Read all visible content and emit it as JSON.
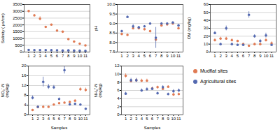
{
  "chart_data": [
    {
      "type": "scatter",
      "ylabel": "Salinity ( μs/cm)",
      "x": [
        1,
        2,
        3,
        4,
        5,
        6,
        7,
        8,
        9,
        10,
        11
      ],
      "xlim": [
        0.2,
        11.8
      ],
      "xticks": [
        1,
        2,
        3,
        4,
        5,
        6,
        7,
        8,
        9,
        10,
        11
      ],
      "ylim": [
        0,
        3500
      ],
      "yticks": [
        0,
        500,
        1000,
        1500,
        2000,
        2500,
        3000,
        3500
      ],
      "grid": true,
      "series": [
        {
          "name": "Mudflat sites",
          "color": "#E07B54",
          "values": [
            3020,
            2700,
            2460,
            1850,
            2020,
            1580,
            1500,
            950,
            770,
            620,
            490
          ],
          "errors": [
            60,
            80,
            150,
            50,
            40,
            30,
            30,
            30,
            20,
            20,
            20
          ]
        },
        {
          "name": "Agricultural sites",
          "color": "#5469B0",
          "values": [
            155,
            145,
            145,
            140,
            135,
            130,
            115,
            120,
            115,
            105,
            90
          ],
          "errors": [
            5,
            5,
            5,
            5,
            5,
            5,
            5,
            5,
            5,
            5,
            5
          ]
        }
      ]
    },
    {
      "type": "scatter",
      "ylabel": "pH",
      "x": [
        1,
        2,
        3,
        4,
        5,
        6,
        7,
        8,
        9,
        10,
        11
      ],
      "xlim": [
        0.2,
        11.8
      ],
      "xticks": [
        1,
        2,
        3,
        4,
        5,
        6,
        7,
        8,
        9,
        10,
        11
      ],
      "ylim": [
        7.5,
        10
      ],
      "yticks": [
        7.5,
        {
          "value": 8,
          "label": "8.0"
        },
        8.5,
        {
          "value": 9,
          "label": "9.0"
        },
        9.5,
        {
          "value": 10,
          "label": "10.0"
        }
      ],
      "grid": true,
      "series": [
        {
          "name": "Mudflat sites",
          "color": "#E07B54",
          "values": [
            8.45,
            8.4,
            8.75,
            8.75,
            8.7,
            8.6,
            8.15,
            8.9,
            8.95,
            9.0,
            8.75
          ],
          "errors": [
            0.05,
            0.05,
            0.05,
            0.05,
            0.05,
            0.05,
            0.1,
            0.05,
            0.05,
            0.05,
            0.05
          ]
        },
        {
          "name": "Agricultural sites",
          "color": "#5469B0",
          "values": [
            8.6,
            9.35,
            8.85,
            8.8,
            8.85,
            9.0,
            8.25,
            9.0,
            9.0,
            9.05,
            8.9
          ],
          "errors": [
            0.05,
            0.05,
            0.1,
            0.05,
            0.05,
            0.05,
            0.55,
            0.05,
            0.05,
            0.05,
            0.05
          ]
        }
      ]
    },
    {
      "type": "scatter",
      "ylabel": "OM (mg/kg)",
      "x": [
        1,
        2,
        3,
        4,
        5,
        6,
        7,
        8,
        9,
        10,
        11
      ],
      "xlim": [
        0.2,
        11.8
      ],
      "xticks": [
        1,
        2,
        3,
        4,
        5,
        6,
        7,
        8,
        9,
        10,
        11
      ],
      "ylim": [
        0,
        60
      ],
      "yticks": [
        0,
        10,
        20,
        30,
        40,
        50,
        60
      ],
      "grid": true,
      "series": [
        {
          "name": "Mudflat sites",
          "color": "#E07B54",
          "values": [
            15,
            17,
            17,
            15,
            14,
            10,
            8,
            10,
            10,
            15,
            11
          ],
          "errors": [
            2,
            2,
            2,
            2,
            1,
            1,
            1,
            1,
            1,
            2,
            2
          ]
        },
        {
          "name": "Agricultural sites",
          "color": "#5469B0",
          "values": [
            24,
            10,
            30,
            10,
            9,
            9,
            47,
            20,
            14,
            21,
            9
          ],
          "errors": [
            2,
            1,
            3,
            1,
            1,
            1,
            4,
            2,
            2,
            3,
            1
          ]
        }
      ]
    },
    {
      "type": "scatter",
      "ylabel": "NO₃⁻-N\n(mg/kg)",
      "xlabel": "Samples",
      "x": [
        1,
        2,
        3,
        4,
        5,
        6,
        7,
        8,
        9,
        10,
        11
      ],
      "xlim": [
        0.2,
        11.8
      ],
      "xticks": [
        1,
        2,
        3,
        4,
        5,
        6,
        7,
        8,
        9,
        10,
        11
      ],
      "ylim": [
        0,
        20
      ],
      "yticks": [
        0,
        4,
        8,
        12,
        16,
        20
      ],
      "grid": true,
      "series": [
        {
          "name": "Mudflat sites",
          "color": "#E07B54",
          "values": [
            2.0,
            3.2,
            3.3,
            3.3,
            4.2,
            4.8,
            5.0,
            5.3,
            5.8,
            10.5,
            10.2
          ],
          "errors": [
            0.3,
            0.3,
            0.4,
            0.2,
            0.3,
            0.3,
            0.3,
            0.4,
            0.5,
            0.7,
            0.8
          ]
        },
        {
          "name": "Agricultural sites",
          "color": "#5469B0",
          "values": [
            7.0,
            3.3,
            13.5,
            11.5,
            11.3,
            6.5,
            18.3,
            4.3,
            4.5,
            4.2,
            2.5
          ],
          "errors": [
            0.8,
            0.3,
            2.0,
            1.0,
            0.8,
            0.5,
            1.5,
            0.4,
            0.4,
            0.3,
            0.2
          ]
        }
      ]
    },
    {
      "type": "scatter",
      "ylabel": "NH₄⁺-N\n(mg/kg)",
      "xlabel": "Samples",
      "x": [
        1,
        2,
        3,
        4,
        5,
        6,
        7,
        8,
        9,
        10,
        11
      ],
      "xlim": [
        0.2,
        11.8
      ],
      "xticks": [
        1,
        2,
        3,
        4,
        5,
        6,
        7,
        8,
        9,
        10,
        11
      ],
      "ylim": [
        0,
        12
      ],
      "yticks": [
        0,
        2,
        4,
        6,
        8,
        10,
        12
      ],
      "grid": true,
      "series": [
        {
          "name": "Mudflat sites",
          "color": "#E07B54",
          "values": [
            9.6,
            8.3,
            8.5,
            8.4,
            8.4,
            6.5,
            6.8,
            6.4,
            6.9,
            5.0,
            5.1
          ],
          "errors": [
            0.5,
            0.4,
            0.4,
            0.4,
            0.4,
            0.3,
            0.3,
            0.3,
            0.3,
            0.3,
            0.3
          ]
        },
        {
          "name": "Agricultural sites",
          "color": "#5469B0",
          "values": [
            5.2,
            8.5,
            8.5,
            6.0,
            6.3,
            6.4,
            5.3,
            6.8,
            5.1,
            5.8,
            6.0
          ],
          "errors": [
            0.4,
            0.5,
            0.5,
            0.4,
            0.4,
            0.4,
            0.3,
            0.4,
            0.3,
            0.4,
            0.4
          ]
        }
      ]
    }
  ]
}
